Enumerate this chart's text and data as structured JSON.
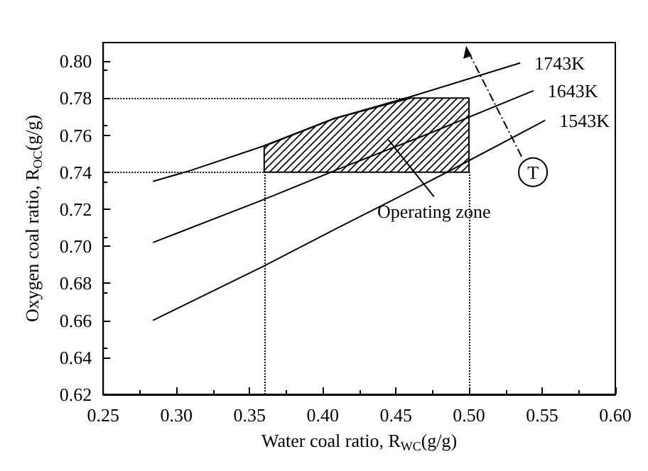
{
  "chart_data": {
    "type": "line",
    "xlabel": "Water coal ratio, R$_{WC}$(g/g)",
    "ylabel": "Oxygen coal ratio, R$_{OC}$(g/g)",
    "xlim": [
      0.25,
      0.6
    ],
    "ylim": [
      0.62,
      0.81
    ],
    "xticks": [
      {
        "value": 0.25,
        "label": "0.25"
      },
      {
        "value": 0.3,
        "label": "0.30"
      },
      {
        "value": 0.35,
        "label": "0.35"
      },
      {
        "value": 0.4,
        "label": "0.40"
      },
      {
        "value": 0.45,
        "label": "0.45"
      },
      {
        "value": 0.5,
        "label": "0.50"
      },
      {
        "value": 0.55,
        "label": "0.55"
      },
      {
        "value": 0.6,
        "label": "0.60"
      }
    ],
    "yticks": [
      {
        "value": 0.62,
        "label": "0.62"
      },
      {
        "value": 0.64,
        "label": "0.64"
      },
      {
        "value": 0.66,
        "label": "0.66"
      },
      {
        "value": 0.68,
        "label": "0.68"
      },
      {
        "value": 0.7,
        "label": "0.70"
      },
      {
        "value": 0.72,
        "label": "0.72"
      },
      {
        "value": 0.74,
        "label": "0.74"
      },
      {
        "value": 0.76,
        "label": "0.76"
      },
      {
        "value": 0.78,
        "label": "0.78"
      },
      {
        "value": 0.8,
        "label": "0.80"
      }
    ],
    "marker": "none",
    "line_style": "solid",
    "legend": false,
    "grid": false,
    "series": [
      {
        "name": "1743K",
        "color": "#000000",
        "x": [
          0.284,
          0.31,
          0.359,
          0.408,
          0.461,
          0.535
        ],
        "values": [
          0.735,
          0.741,
          0.754,
          0.769,
          0.781,
          0.799
        ]
      },
      {
        "name": "1643K",
        "color": "#000000",
        "x": [
          0.284,
          0.359,
          0.415,
          0.47,
          0.544
        ],
        "values": [
          0.702,
          0.725,
          0.743,
          0.76,
          0.784
        ]
      },
      {
        "name": "1543K",
        "color": "#000000",
        "x": [
          0.284,
          0.359,
          0.408,
          0.448,
          0.485,
          0.552
        ],
        "values": [
          0.66,
          0.689,
          0.709,
          0.725,
          0.74,
          0.768
        ]
      },
      {
        "type": "area",
        "color": "#000000",
        "x": [
          0.36,
          0.36,
          0.408,
          0.46,
          0.5,
          0.5,
          0.36
        ],
        "values": [
          0.74,
          0.754,
          0.769,
          0.78,
          0.78,
          0.74,
          0.74
        ]
      }
    ],
    "ref_lines": [
      {
        "axis": "y",
        "value": 0.78,
        "line_style": "dotted"
      },
      {
        "axis": "y",
        "value": 0.74,
        "line_style": "dotted"
      },
      {
        "axis": "x",
        "value": 0.36,
        "line_style": "dotted"
      },
      {
        "axis": "x",
        "value": 0.5,
        "line_style": "dotted"
      }
    ],
    "annotations": [
      "Operating zone",
      "T"
    ]
  }
}
